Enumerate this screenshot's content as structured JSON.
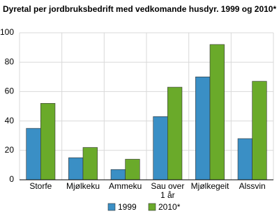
{
  "chart_data": {
    "type": "bar",
    "title": "Dyretal per jordbruksbedrift med vedkomande husdyr. 1999 og 2010*",
    "categories": [
      "Storfe",
      "Mjølkeku",
      "Ammeku",
      "Sau over 1 år",
      "Mjølkegeit",
      "Alssvin"
    ],
    "series": [
      {
        "name": "1999",
        "color": "#3a8fc5",
        "values": [
          35,
          15,
          7,
          43,
          70,
          28
        ]
      },
      {
        "name": "2010*",
        "color": "#6aaa2a",
        "values": [
          52,
          22,
          14,
          63,
          92,
          67
        ]
      }
    ],
    "ylim": [
      0,
      100
    ],
    "yticks": [
      0,
      20,
      40,
      60,
      80,
      100
    ],
    "grid": true
  }
}
